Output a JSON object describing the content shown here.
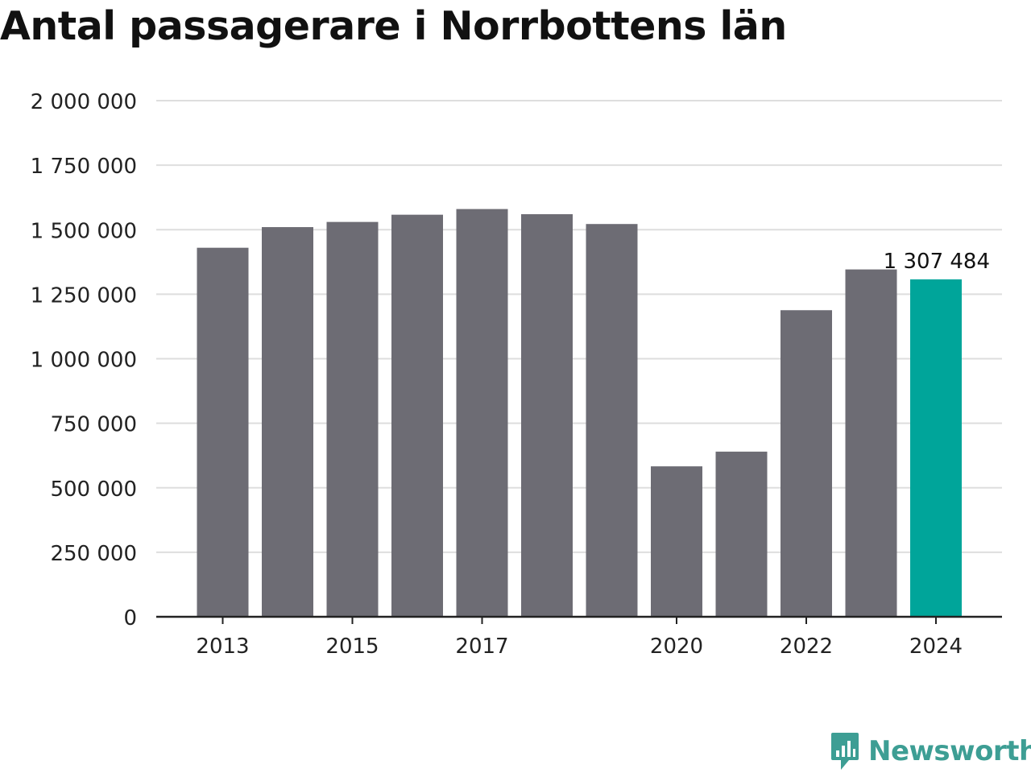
{
  "title": "Antal passagerare i Norrbottens län",
  "brand": {
    "name": "Newsworthy",
    "icon": "speech-bubble-bar-chart-icon",
    "color": "#3d9e94"
  },
  "colors": {
    "bar": "#6d6c74",
    "highlight": "#00a59a",
    "grid": "#dedede",
    "axis": "#222222",
    "text": "#222222"
  },
  "chart_data": {
    "type": "bar",
    "title": "Antal passagerare i Norrbottens län",
    "xlabel": "",
    "ylabel": "",
    "categories": [
      2013,
      2014,
      2015,
      2016,
      2017,
      2018,
      2019,
      2020,
      2021,
      2022,
      2023,
      2024
    ],
    "values": [
      1430000,
      1510000,
      1530000,
      1558000,
      1580000,
      1560000,
      1522000,
      583000,
      640000,
      1188000,
      1346000,
      1307484
    ],
    "x_tick_labels": [
      "2013",
      "2015",
      "2017",
      "2020",
      "2022",
      "2024"
    ],
    "y_ticks": [
      0,
      250000,
      500000,
      750000,
      1000000,
      1250000,
      1500000,
      1750000,
      2000000
    ],
    "y_tick_labels": [
      "0",
      "250 000",
      "500 000",
      "750 000",
      "1 000 000",
      "1 250 000",
      "1 500 000",
      "1 750 000",
      "2 000 000"
    ],
    "ylim": [
      0,
      2000000
    ],
    "highlight_category": 2024,
    "annotation": {
      "category": 2024,
      "text": "1 307 484"
    },
    "grid": true,
    "legend": "none"
  }
}
